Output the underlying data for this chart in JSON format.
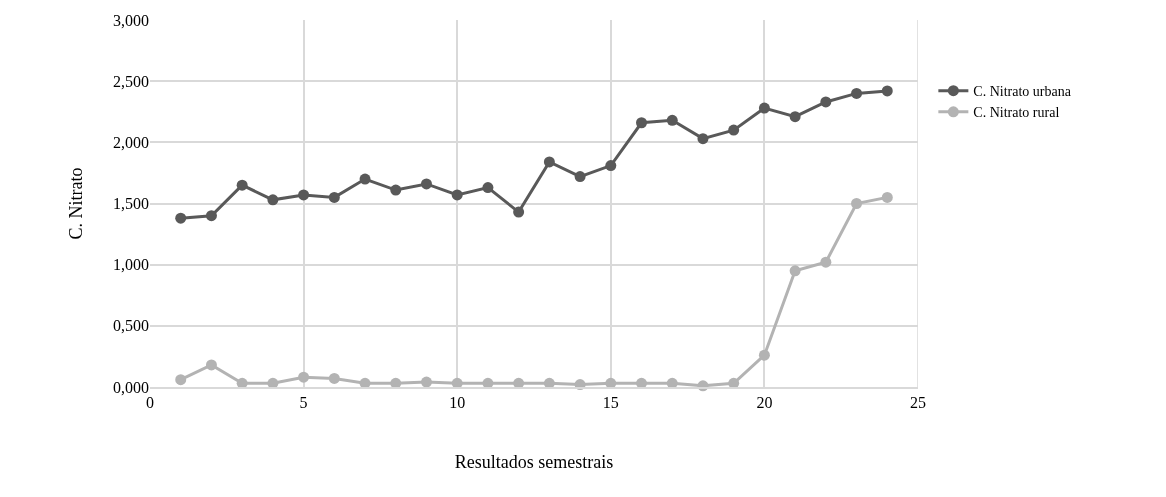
{
  "chart_data": {
    "type": "line",
    "xlabel": "Resultados semestrais",
    "ylabel": "C. Nitrato",
    "x": [
      1,
      2,
      3,
      4,
      5,
      6,
      7,
      8,
      9,
      10,
      11,
      12,
      13,
      14,
      15,
      16,
      17,
      18,
      19,
      20,
      21,
      22,
      23,
      24
    ],
    "series": [
      {
        "name": "C. Nitrato urbana",
        "color": "#595959",
        "values": [
          1.38,
          1.4,
          1.65,
          1.53,
          1.57,
          1.55,
          1.7,
          1.61,
          1.66,
          1.57,
          1.63,
          1.43,
          1.84,
          1.72,
          1.81,
          2.16,
          2.18,
          2.03,
          2.1,
          2.28,
          2.21,
          2.33,
          2.4,
          2.42
        ]
      },
      {
        "name": "C. Nitrato rural",
        "color": "#b3b3b3",
        "values": [
          0.06,
          0.18,
          0.03,
          0.03,
          0.08,
          0.07,
          0.03,
          0.03,
          0.04,
          0.03,
          0.03,
          0.03,
          0.03,
          0.02,
          0.03,
          0.03,
          0.03,
          0.01,
          0.03,
          0.26,
          0.95,
          1.02,
          1.5,
          1.55
        ]
      }
    ],
    "xlim": [
      0,
      25
    ],
    "xticks": [
      0,
      5,
      10,
      15,
      20,
      25
    ],
    "ylim": [
      0,
      3
    ],
    "yticks": [
      {
        "value": 0,
        "label": "0,000"
      },
      {
        "value": 0.5,
        "label": "0,500"
      },
      {
        "value": 1,
        "label": "1,000"
      },
      {
        "value": 1.5,
        "label": "1,500"
      },
      {
        "value": 2,
        "label": "2,000"
      },
      {
        "value": 2.5,
        "label": "2,500"
      },
      {
        "value": 3,
        "label": "3,000"
      }
    ],
    "grid": true,
    "legend": "right",
    "marker": "circle",
    "line_style": "solid"
  }
}
